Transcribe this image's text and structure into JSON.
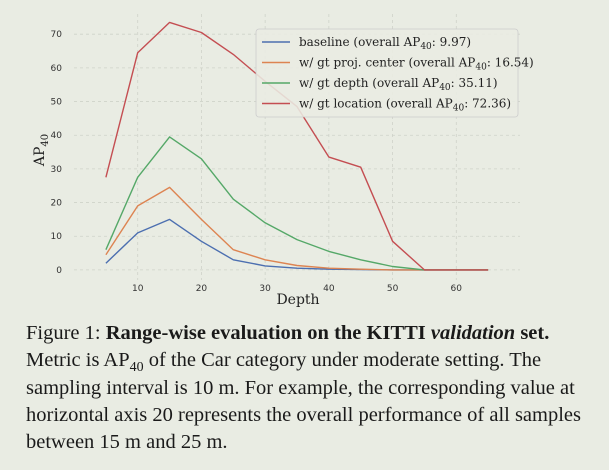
{
  "chart_data": {
    "type": "line",
    "xlabel": "Depth",
    "ylabel": "AP40",
    "xlim": [
      0,
      70
    ],
    "ylim": [
      -3,
      76
    ],
    "xticks": [
      10,
      20,
      30,
      40,
      50,
      60
    ],
    "yticks": [
      0,
      10,
      20,
      30,
      40,
      50,
      60,
      70
    ],
    "grid": true,
    "legend_position": "top-right",
    "x": [
      5,
      10,
      15,
      20,
      25,
      30,
      35,
      40,
      45,
      50,
      55,
      60,
      65
    ],
    "series": [
      {
        "name": "baseline (overall AP40: 9.97)",
        "color": "#4c6fb0",
        "values": [
          2,
          11,
          15,
          8.5,
          3,
          1.2,
          0.5,
          0.2,
          0.1,
          0,
          0,
          0,
          0
        ]
      },
      {
        "name": "w/ gt proj. center (overall AP40: 16.54)",
        "color": "#dd8452",
        "values": [
          4.5,
          19,
          24.5,
          15,
          6,
          3,
          1.3,
          0.5,
          0.2,
          0,
          0,
          0,
          0
        ]
      },
      {
        "name": "w/ gt depth (overall AP40: 35.11)",
        "color": "#55a868",
        "values": [
          6,
          27.5,
          39.5,
          33,
          21,
          14,
          9,
          5.5,
          3,
          1,
          0,
          0,
          0
        ]
      },
      {
        "name": "w/ gt location (overall AP40: 72.36)",
        "color": "#c44e52",
        "values": [
          27.5,
          64.5,
          73.5,
          70.5,
          64,
          56,
          48.5,
          33.5,
          30.5,
          8.5,
          0,
          0,
          0
        ]
      }
    ]
  },
  "legend": [
    {
      "prefix": "baseline (overall AP",
      "sub": "40",
      "suffix": ": 9.97)"
    },
    {
      "prefix": "w/ gt proj. center (overall AP",
      "sub": "40",
      "suffix": ": 16.54)"
    },
    {
      "prefix": "w/ gt depth (overall AP",
      "sub": "40",
      "suffix": ": 35.11)"
    },
    {
      "prefix": "w/ gt location (overall AP",
      "sub": "40",
      "suffix": ": 72.36)"
    }
  ],
  "ylabel_parts": {
    "main": "AP",
    "sub": "40"
  },
  "caption": {
    "label": "Figure 1:",
    "title": "Range-wise evaluation on the KITTI",
    "title_italic": "validation",
    "title_end": "set.",
    "body_1": "Metric is AP",
    "body_sub": "40",
    "body_2": "of the Car category under moderate setting. The sampling interval is 10 m. For example, the corresponding value at horizontal axis 20 represents the overall performance of all samples between 15 m and 25 m."
  },
  "colors": {
    "background": "#e9ece3",
    "grid": "#cfd2c9"
  }
}
